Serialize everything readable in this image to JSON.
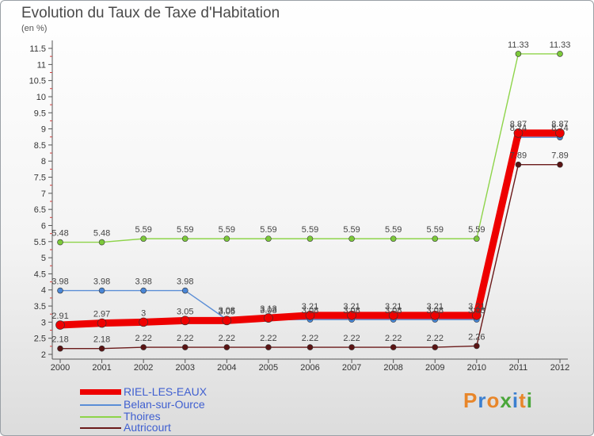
{
  "title": "Evolution du Taux de Taxe d'Habitation",
  "unit": "(en %)",
  "logo": "Proxiti",
  "chart_data": {
    "type": "line",
    "title": "Evolution du Taux de Taxe d'Habitation",
    "ylabel": "(en %)",
    "xlabel": "",
    "ylim": [
      2,
      11.5
    ],
    "y_ticks": [
      "2",
      "2.5",
      "3",
      "3.5",
      "4",
      "4.5",
      "5",
      "5.5",
      "6",
      "6.5",
      "7",
      "7.5",
      "8",
      "8.5",
      "9",
      "9.5",
      "10",
      "10.5",
      "11",
      "11.5"
    ],
    "grid": false,
    "legend_position": "bottom-left",
    "categories": [
      "2000",
      "2001",
      "2002",
      "2003",
      "2004",
      "2005",
      "2006",
      "2007",
      "2008",
      "2009",
      "2010",
      "2011",
      "2012"
    ],
    "series": [
      {
        "name": "RIEL-LES-EAUX",
        "color": "#ee0000",
        "values": [
          2.91,
          2.97,
          3,
          3.05,
          3.05,
          3.13,
          3.21,
          3.21,
          3.21,
          3.21,
          3.21,
          8.87,
          8.87
        ]
      },
      {
        "name": "Belan-sur-Ource",
        "color": "#5b8ed6",
        "values": [
          3.98,
          3.98,
          3.98,
          3.98,
          3.08,
          3.08,
          3.08,
          3.08,
          3.08,
          3.08,
          3.08,
          8.74,
          8.74
        ]
      },
      {
        "name": "Thoires",
        "color": "#8ed44a",
        "values": [
          5.48,
          5.48,
          5.59,
          5.59,
          5.59,
          5.59,
          5.59,
          5.59,
          5.59,
          5.59,
          5.59,
          11.33,
          11.33
        ]
      },
      {
        "name": "Autricourt",
        "color": "#6b1a1a",
        "values": [
          2.18,
          2.18,
          2.22,
          2.22,
          2.22,
          2.22,
          2.22,
          2.22,
          2.22,
          2.22,
          2.26,
          7.89,
          7.89
        ]
      }
    ],
    "data_labels": [
      [
        "2.91",
        "2.97",
        "3",
        "3.05",
        "3.05",
        "3.13",
        "3.21",
        "3.21",
        "3.21",
        "3.21",
        "3.21",
        "8.87",
        "8.87"
      ],
      [
        "3.98",
        "3.98",
        "3.98",
        "3.98",
        "3.08",
        "3.08",
        "3.08",
        "3.08",
        "3.08",
        "3.08",
        "3.08",
        "8.74",
        "8.74"
      ],
      [
        "5.48",
        "5.48",
        "5.59",
        "5.59",
        "5.59",
        "5.59",
        "5.59",
        "5.59",
        "5.59",
        "5.59",
        "5.59",
        "11.33",
        "11.33"
      ],
      [
        "2.18",
        "2.18",
        "2.22",
        "2.22",
        "2.22",
        "2.22",
        "2.22",
        "2.22",
        "2.22",
        "2.22",
        "2.26",
        "7.89",
        "7.89"
      ]
    ]
  }
}
